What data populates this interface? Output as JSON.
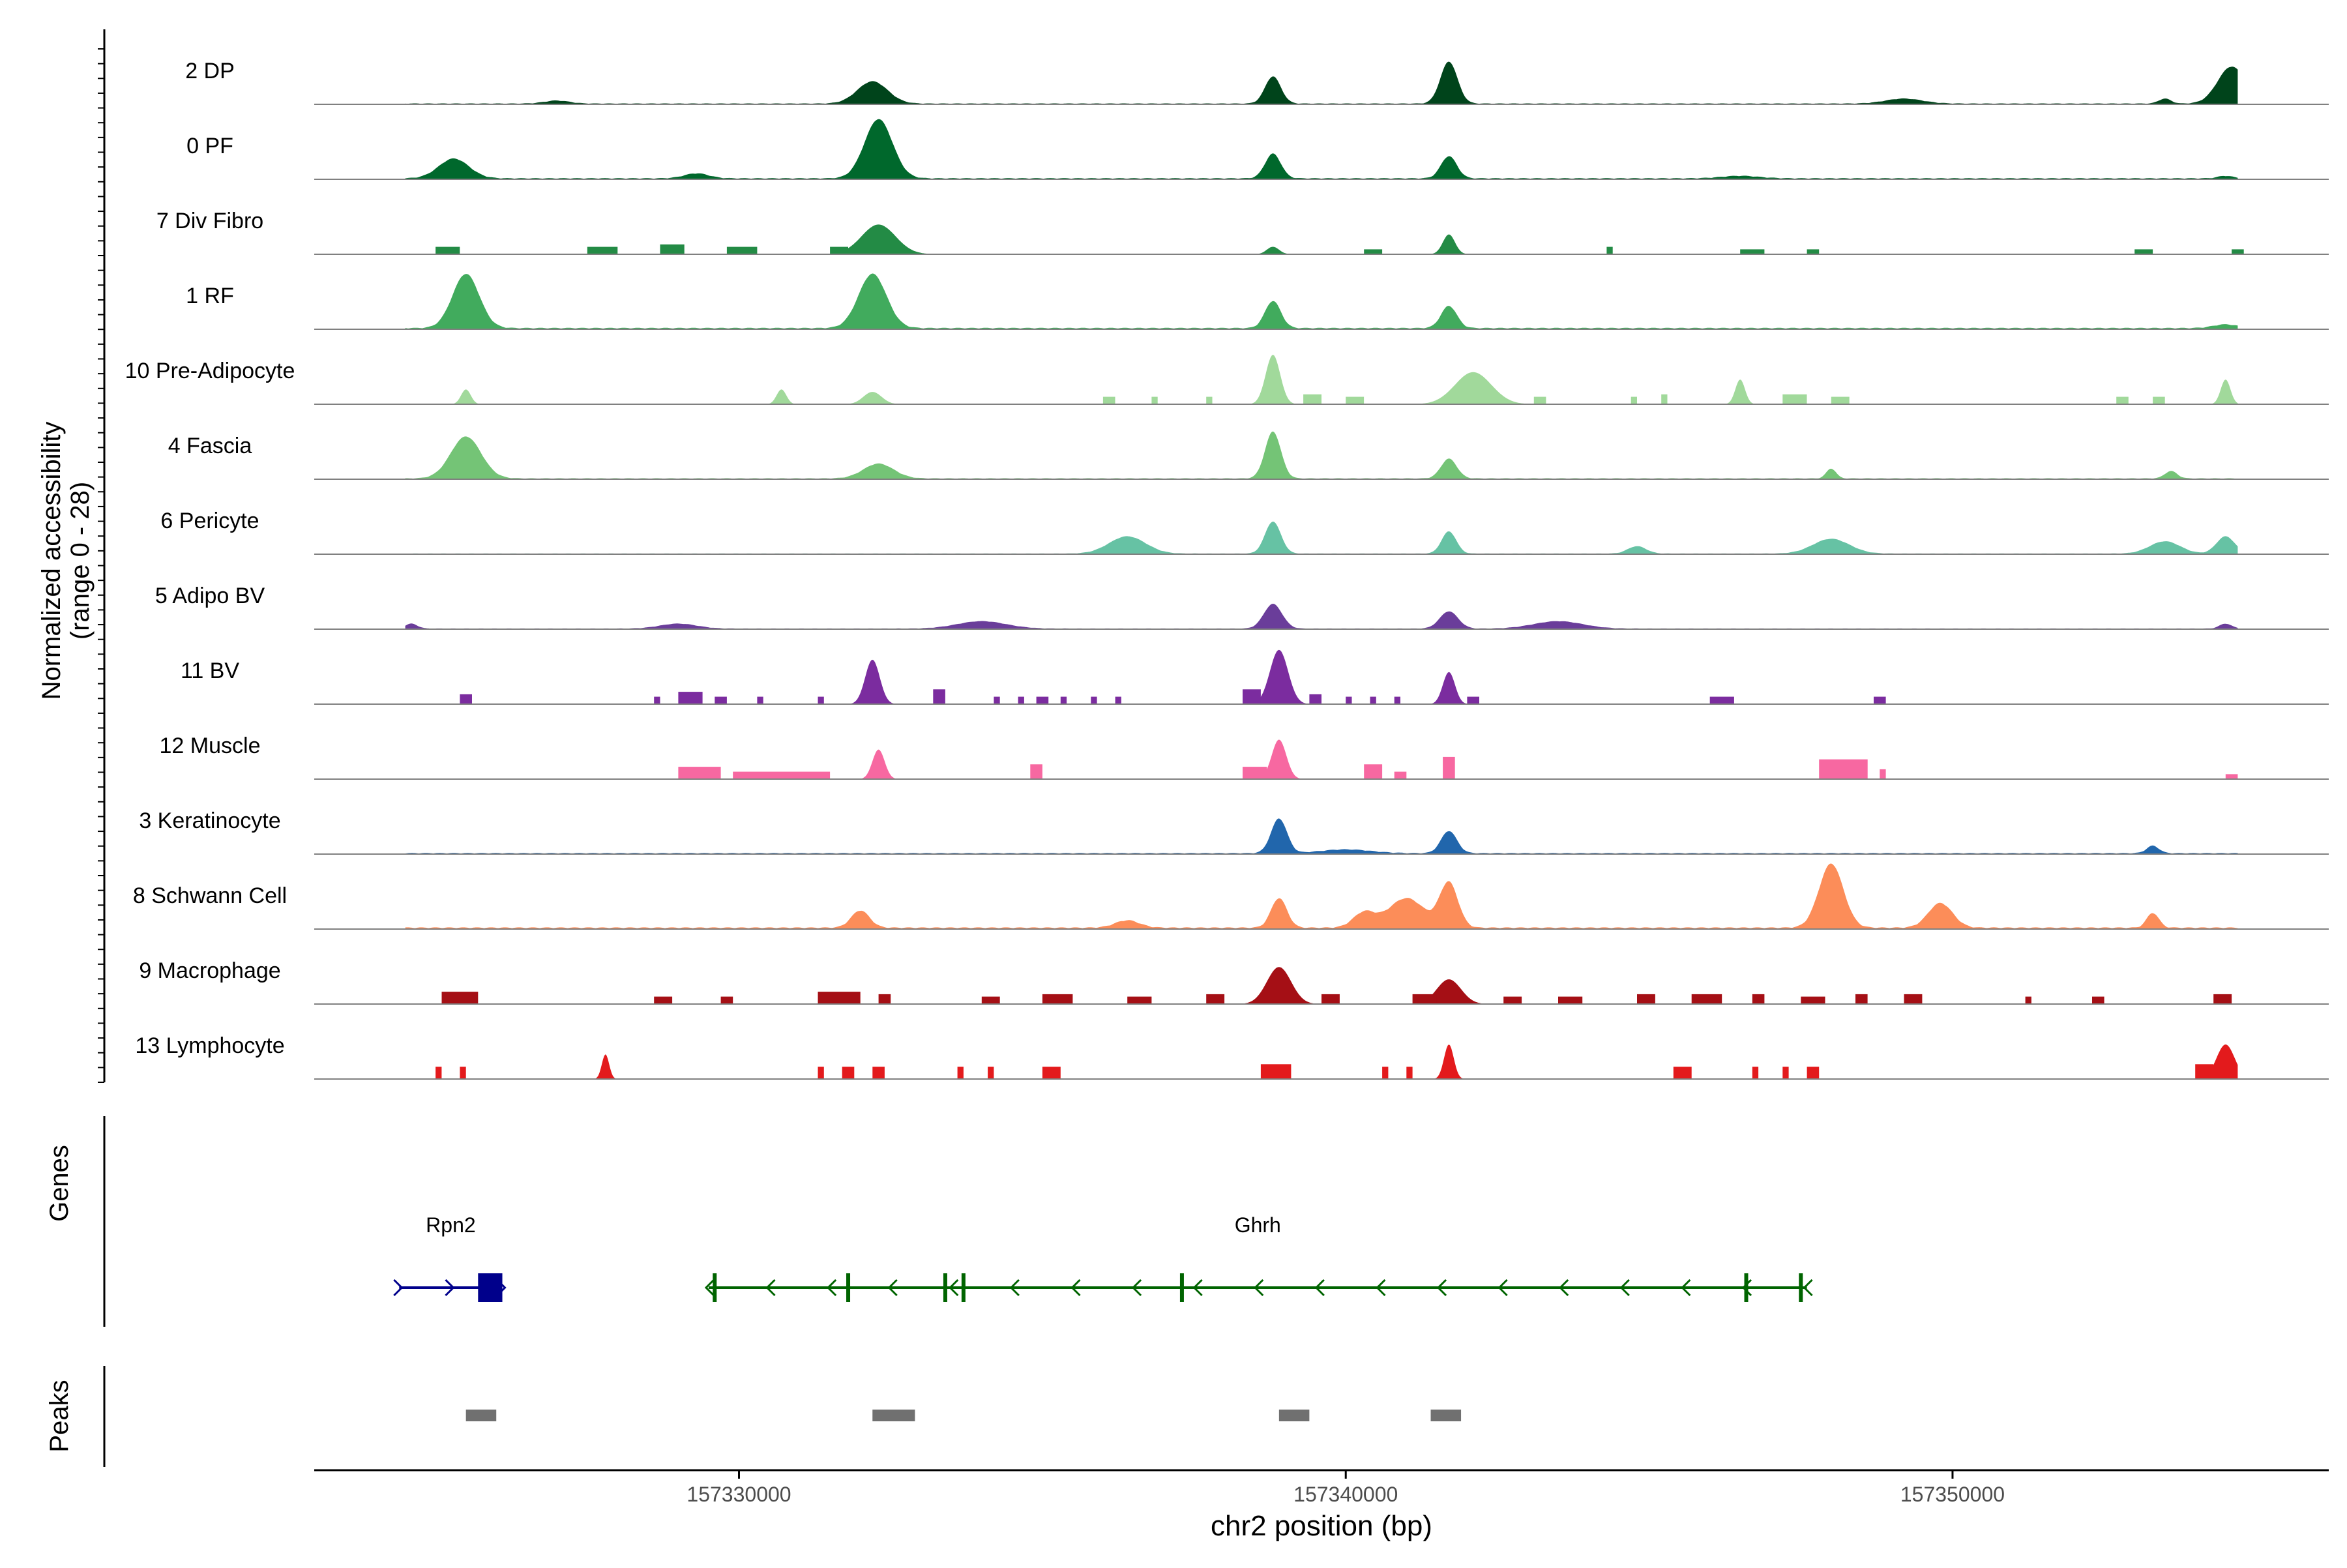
{
  "chart_data": {
    "type": "area",
    "title": "",
    "ylabel_line1": "Normalized accessibility",
    "ylabel_line2": "(range 0 - 28)",
    "y_range": [
      0,
      28
    ],
    "xlabel": "chr2 position (bp)",
    "xlim": [
      157323000,
      157356200
    ],
    "x_ticks": [
      157330000,
      157340000,
      157350000
    ],
    "x_tick_labels": [
      "157330000",
      "157340000",
      "157350000"
    ],
    "tracks": [
      {
        "name": "2 DP",
        "color": "#00441b",
        "base": 0.4,
        "peaks": [
          [
            157327000,
            1.2,
            200
          ],
          [
            157332200,
            9,
            250
          ],
          [
            157338800,
            11,
            130
          ],
          [
            157341700,
            17,
            140
          ],
          [
            157349200,
            2,
            300
          ],
          [
            157353500,
            2,
            100
          ],
          [
            157354600,
            15,
            230
          ]
        ],
        "blocks": []
      },
      {
        "name": "0 PF",
        "color": "#00682c",
        "base": 0.5,
        "peaks": [
          [
            157325300,
            8,
            250
          ],
          [
            157329300,
            2,
            200
          ],
          [
            157332300,
            24,
            230
          ],
          [
            157338800,
            10,
            130
          ],
          [
            157341700,
            9,
            130
          ],
          [
            157346500,
            1,
            300
          ],
          [
            157354500,
            1,
            120
          ]
        ],
        "blocks": []
      },
      {
        "name": "7 Div Fibro",
        "color": "#238b45",
        "base": 0.05,
        "peaks": [
          [
            157332300,
            12,
            280
          ],
          [
            157341700,
            8,
            100
          ],
          [
            157338800,
            3,
            100
          ]
        ],
        "blocks": [
          [
            157325000,
            157325400,
            3
          ],
          [
            157327500,
            157328000,
            3
          ],
          [
            157328700,
            157329100,
            4
          ],
          [
            157329800,
            157330300,
            3
          ],
          [
            157331500,
            157331800,
            3
          ],
          [
            157340300,
            157340600,
            2
          ],
          [
            157344300,
            157344400,
            3
          ],
          [
            157346500,
            157346900,
            2
          ],
          [
            157347600,
            157347800,
            2
          ],
          [
            157353000,
            157353300,
            2
          ],
          [
            157354600,
            157354800,
            2
          ]
        ]
      },
      {
        "name": "1 RF",
        "color": "#41ab5d",
        "base": 0.6,
        "peaks": [
          [
            157325500,
            22,
            220
          ],
          [
            157332200,
            22,
            230
          ],
          [
            157338800,
            11,
            130
          ],
          [
            157341700,
            9,
            130
          ],
          [
            157354500,
            1.5,
            200
          ]
        ],
        "blocks": []
      },
      {
        "name": "10 Pre-Adipocyte",
        "color": "#a1d99b",
        "base": 0,
        "peaks": [
          [
            157325500,
            6,
            80
          ],
          [
            157330700,
            6,
            80
          ],
          [
            157332200,
            5,
            150
          ],
          [
            157338800,
            20,
            120
          ],
          [
            157342100,
            13,
            300
          ],
          [
            157346500,
            10,
            80
          ],
          [
            157354500,
            10,
            80
          ]
        ],
        "blocks": [
          [
            157336000,
            157336200,
            3
          ],
          [
            157336800,
            157336900,
            3
          ],
          [
            157337700,
            157337800,
            3
          ],
          [
            157339300,
            157339600,
            4
          ],
          [
            157340000,
            157340300,
            3
          ],
          [
            157343100,
            157343300,
            3
          ],
          [
            157344700,
            157344800,
            3
          ],
          [
            157345200,
            157345300,
            4
          ],
          [
            157347200,
            157347600,
            4
          ],
          [
            157348000,
            157348300,
            3
          ],
          [
            157352700,
            157352900,
            3
          ],
          [
            157353300,
            157353500,
            3
          ]
        ]
      },
      {
        "name": "4 Fascia",
        "color": "#74c476",
        "base": 0.4,
        "peaks": [
          [
            157325500,
            17,
            250
          ],
          [
            157332300,
            6,
            250
          ],
          [
            157338800,
            19,
            130
          ],
          [
            157341700,
            8,
            130
          ],
          [
            157348000,
            4,
            80
          ],
          [
            157353600,
            3,
            100
          ]
        ],
        "blocks": []
      },
      {
        "name": "6 Pericyte",
        "color": "#66c2a4",
        "base": 0.3,
        "peaks": [
          [
            157336400,
            7,
            300
          ],
          [
            157338800,
            13,
            130
          ],
          [
            157341700,
            9,
            120
          ],
          [
            157344800,
            3,
            150
          ],
          [
            157348000,
            6,
            300
          ],
          [
            157353500,
            5,
            250
          ],
          [
            157354500,
            7,
            150
          ]
        ],
        "blocks": []
      },
      {
        "name": "5 Adipo BV",
        "color": "#6a3d9a",
        "base": 0.3,
        "peaks": [
          [
            157338800,
            10,
            150
          ],
          [
            157341700,
            7,
            150
          ],
          [
            157343500,
            3,
            400
          ],
          [
            157334000,
            3,
            400
          ],
          [
            157329000,
            2,
            300
          ],
          [
            157324600,
            2,
            100
          ],
          [
            157354500,
            2,
            100
          ]
        ],
        "blocks": []
      },
      {
        "name": "11 BV",
        "color": "#7b2c9f",
        "base": 0,
        "peaks": [
          [
            157332200,
            18,
            120
          ],
          [
            157338900,
            22,
            150
          ],
          [
            157341700,
            13,
            100
          ]
        ],
        "blocks": [
          [
            157325400,
            157325600,
            4
          ],
          [
            157328600,
            157328700,
            3
          ],
          [
            157329000,
            157329400,
            5
          ],
          [
            157329600,
            157329800,
            3
          ],
          [
            157330300,
            157330400,
            3
          ],
          [
            157331300,
            157331400,
            3
          ],
          [
            157333200,
            157333400,
            6
          ],
          [
            157334200,
            157334300,
            3
          ],
          [
            157334600,
            157334700,
            3
          ],
          [
            157334900,
            157335100,
            3
          ],
          [
            157335300,
            157335400,
            3
          ],
          [
            157335800,
            157335900,
            3
          ],
          [
            157336200,
            157336300,
            3
          ],
          [
            157338300,
            157338600,
            6
          ],
          [
            157339400,
            157339600,
            4
          ],
          [
            157340000,
            157340100,
            3
          ],
          [
            157340400,
            157340500,
            3
          ],
          [
            157340800,
            157340900,
            3
          ],
          [
            157342000,
            157342200,
            3
          ],
          [
            157346000,
            157346400,
            3
          ],
          [
            157348700,
            157348900,
            3
          ]
        ]
      },
      {
        "name": "12 Muscle",
        "color": "#f768a1",
        "base": 0,
        "peaks": [
          [
            157332300,
            12,
            100
          ],
          [
            157338900,
            16,
            120
          ]
        ],
        "blocks": [
          [
            157329000,
            157329700,
            5
          ],
          [
            157329900,
            157331500,
            3
          ],
          [
            157334800,
            157335000,
            6
          ],
          [
            157338300,
            157338700,
            5
          ],
          [
            157340300,
            157340600,
            6
          ],
          [
            157340800,
            157341000,
            3
          ],
          [
            157341600,
            157341800,
            9
          ],
          [
            157347800,
            157348600,
            8
          ],
          [
            157348800,
            157348900,
            4
          ],
          [
            157354500,
            157354700,
            2
          ]
        ]
      },
      {
        "name": "3 Keratinocyte",
        "color": "#2166ac",
        "base": 0.5,
        "peaks": [
          [
            157338900,
            14,
            130
          ],
          [
            157341700,
            9,
            130
          ],
          [
            157353300,
            3,
            100
          ],
          [
            157340000,
            1.5,
            400
          ]
        ],
        "blocks": []
      },
      {
        "name": "8 Schwann Cell",
        "color": "#fc8d59",
        "base": 0.7,
        "peaks": [
          [
            157332000,
            7,
            150
          ],
          [
            157338900,
            12,
            130
          ],
          [
            157340300,
            6,
            180
          ],
          [
            157341000,
            12,
            300
          ],
          [
            157341700,
            18,
            150
          ],
          [
            157348000,
            26,
            200
          ],
          [
            157349800,
            10,
            200
          ],
          [
            157353300,
            6,
            100
          ],
          [
            157336400,
            3,
            200
          ]
        ],
        "blocks": []
      },
      {
        "name": "9 Macrophage",
        "color": "#a50f15",
        "base": 0,
        "peaks": [
          [
            157338900,
            15,
            200
          ],
          [
            157341700,
            10,
            200
          ]
        ],
        "blocks": [
          [
            157325100,
            157325700,
            5
          ],
          [
            157328600,
            157328900,
            3
          ],
          [
            157329700,
            157329900,
            3
          ],
          [
            157331300,
            157332000,
            5
          ],
          [
            157332300,
            157332500,
            4
          ],
          [
            157334000,
            157334300,
            3
          ],
          [
            157335000,
            157335500,
            4
          ],
          [
            157336400,
            157336800,
            3
          ],
          [
            157337700,
            157338000,
            4
          ],
          [
            157339600,
            157339900,
            4
          ],
          [
            157341100,
            157341500,
            4
          ],
          [
            157342600,
            157342900,
            3
          ],
          [
            157343500,
            157343900,
            3
          ],
          [
            157344800,
            157345100,
            4
          ],
          [
            157345700,
            157346200,
            4
          ],
          [
            157346700,
            157346900,
            4
          ],
          [
            157347500,
            157347900,
            3
          ],
          [
            157348400,
            157348600,
            4
          ],
          [
            157349200,
            157349500,
            4
          ],
          [
            157351200,
            157351300,
            3
          ],
          [
            157352300,
            157352500,
            3
          ],
          [
            157354300,
            157354600,
            4
          ]
        ]
      },
      {
        "name": "13 Lymphocyte",
        "color": "#e31a1c",
        "base": 0,
        "peaks": [
          [
            157327800,
            10,
            60
          ],
          [
            157341700,
            14,
            80
          ],
          [
            157354500,
            14,
            150
          ]
        ],
        "blocks": [
          [
            157325000,
            157325100,
            5
          ],
          [
            157325400,
            157325500,
            5
          ],
          [
            157331300,
            157331400,
            5
          ],
          [
            157331700,
            157331900,
            5
          ],
          [
            157332200,
            157332400,
            5
          ],
          [
            157333600,
            157333700,
            5
          ],
          [
            157334100,
            157334200,
            5
          ],
          [
            157335000,
            157335300,
            5
          ],
          [
            157338600,
            157339100,
            6
          ],
          [
            157340600,
            157340700,
            5
          ],
          [
            157341000,
            157341100,
            5
          ],
          [
            157345400,
            157345700,
            5
          ],
          [
            157346700,
            157346800,
            5
          ],
          [
            157347200,
            157347300,
            5
          ],
          [
            157347600,
            157347800,
            5
          ],
          [
            157354000,
            157354300,
            6
          ]
        ]
      }
    ],
    "genes": {
      "label": "Genes",
      "items": [
        {
          "name": "Rpn2",
          "strand": "+",
          "start": 157324400,
          "end": 157326100,
          "color": "#00008b",
          "exons": [
            [
              157325700,
              157326100
            ]
          ],
          "ticks": []
        },
        {
          "name": "Ghrh",
          "strand": "-",
          "start": 157329500,
          "end": 157347600,
          "color": "#006400",
          "exons": [],
          "ticks": [
            157329600,
            157331800,
            157333400,
            157333700,
            157337300,
            157346600,
            157347500
          ]
        }
      ]
    },
    "peaks_track": {
      "label": "Peaks",
      "color": "#707070",
      "regions": [
        [
          157325500,
          157326000
        ],
        [
          157332200,
          157332900
        ],
        [
          157338900,
          157339400
        ],
        [
          157341400,
          157341900
        ]
      ]
    }
  }
}
